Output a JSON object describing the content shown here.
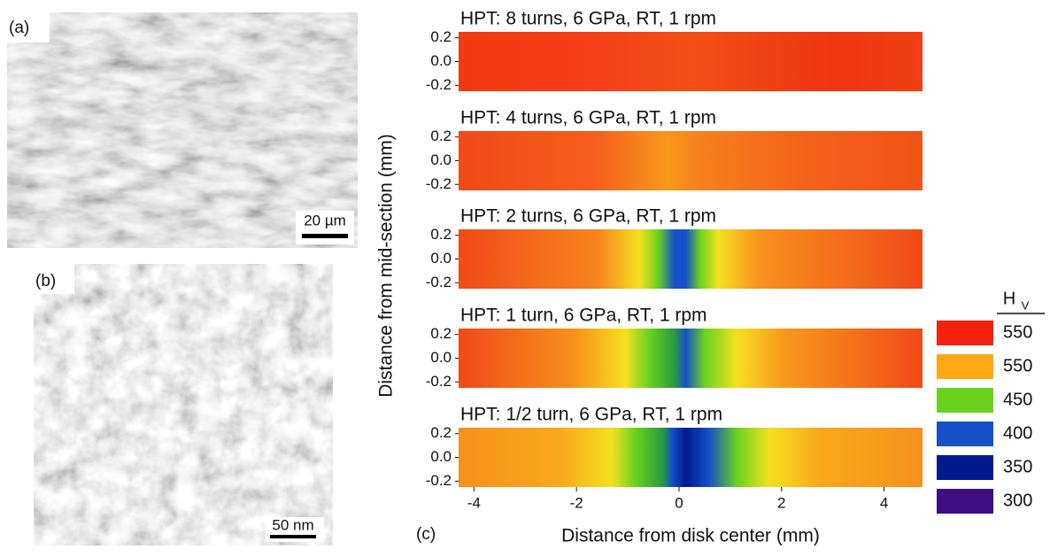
{
  "panels": {
    "a": {
      "label": "(a)",
      "scale_bar": "20 µm"
    },
    "b": {
      "label": "(b)",
      "scale_bar": "50 nm"
    },
    "c": {
      "label": "(c)"
    }
  },
  "chart_data": {
    "type": "contour",
    "plots": [
      {
        "title": "HPT: 8 turns, 6 GPa, RT, 1 rpm"
      },
      {
        "title": "HPT: 4 turns, 6 GPa, RT, 1 rpm"
      },
      {
        "title": "HPT: 2 turns, 6 GPa, RT, 1 rpm"
      },
      {
        "title": "HPT: 1 turn, 6 GPa, RT, 1 rpm"
      },
      {
        "title": "HPT: 1/2 turn, 6 GPa, RT, 1 rpm"
      }
    ],
    "x_label": "Distance from disk center (mm)",
    "y_label": "Distance from mid-section (mm)",
    "xlim": [
      -4.3,
      4.75
    ],
    "xticks": [
      -4,
      -2,
      0,
      2,
      4
    ],
    "ylim": [
      -0.25,
      0.25
    ],
    "yticks": [
      0.2,
      {
        "value": 0,
        "label": "0.0"
      },
      -0.2
    ],
    "legend": {
      "title": "H",
      "title_sub": "V",
      "entries": [
        {
          "value": 550,
          "color": "#f5200e"
        },
        {
          "value": 550,
          "color": "#ffa814"
        },
        {
          "value": 450,
          "color": "#6ad21e"
        },
        {
          "value": 400,
          "color": "#1550c8"
        },
        {
          "value": 350,
          "color": "#001a8c"
        },
        {
          "value": 300,
          "color": "#3c1080"
        }
      ]
    }
  }
}
